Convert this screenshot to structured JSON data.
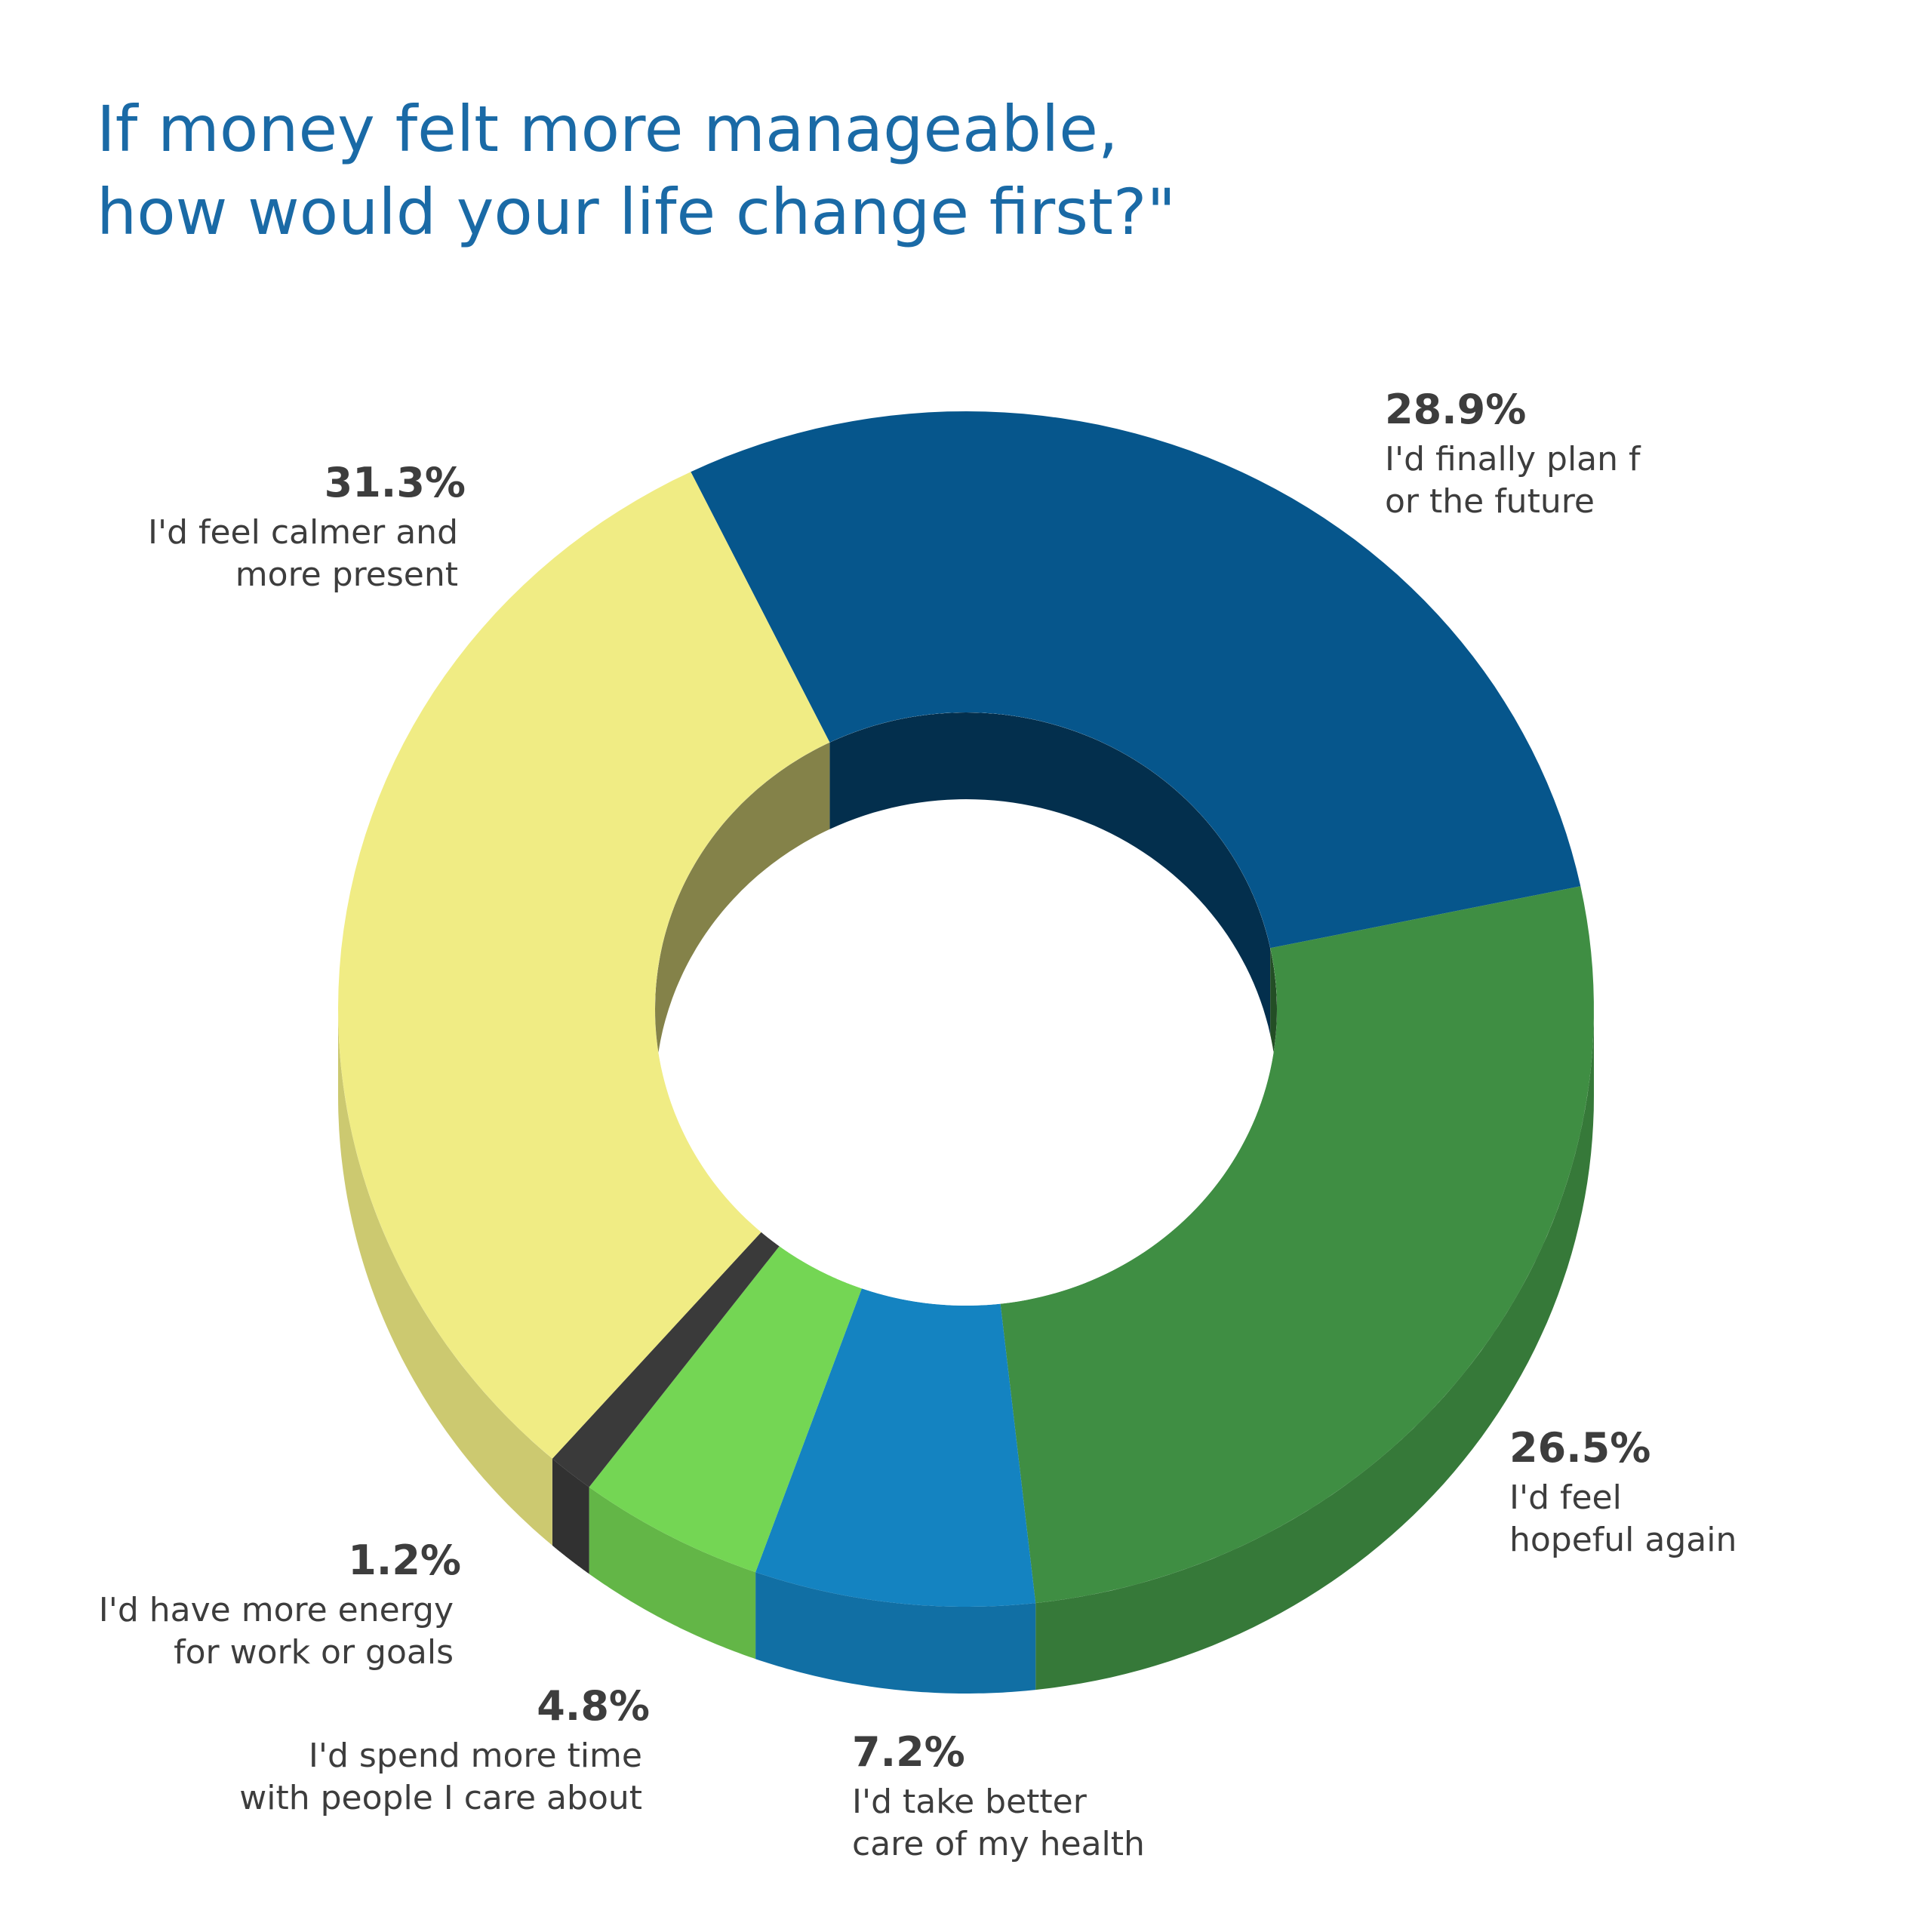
{
  "chart_data": {
    "type": "donut3d",
    "title": "If money felt more manageable,\nhow would your life change first?\"",
    "categories": [
      "I'd finally plan f\nor the future",
      "I'd feel\nhopeful again",
      "I'd take better\ncare of my health",
      "I'd spend more time\nwith people I care about",
      "I'd have more energy\nfor work or goals",
      "I'd feel calmer and\nmore present"
    ],
    "values": [
      28.9,
      26.5,
      7.2,
      4.8,
      1.2,
      31.3
    ],
    "value_labels": [
      "28.9%",
      "26.5%",
      "7.2%",
      "4.8%",
      "1.2%",
      "31.3%"
    ],
    "colors": [
      "#06568c",
      "#3f8e43",
      "#1483c1",
      "#74d654",
      "#3a3a3a",
      "#f0ec84"
    ]
  }
}
